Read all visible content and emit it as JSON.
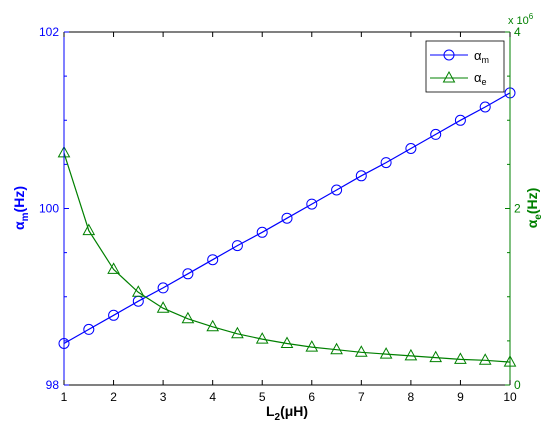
{
  "chart_data": {
    "type": "line",
    "xlabel": "L",
    "xlabel_sub": "2",
    "xlabel_unit": "(μH)",
    "ylabel_left": "α",
    "ylabel_left_sub": "m",
    "ylabel_left_unit": "(Hz)",
    "ylabel_right": "α",
    "ylabel_right_sub": "e",
    "ylabel_right_unit": "(Hz)",
    "right_axis_multiplier": "x 10",
    "right_axis_exponent": "6",
    "xlim": [
      1,
      10
    ],
    "ylim_left": [
      98,
      102
    ],
    "ylim_right": [
      0,
      4
    ],
    "x_ticks": [
      "1",
      "2",
      "3",
      "4",
      "5",
      "6",
      "7",
      "8",
      "9",
      "10"
    ],
    "y_left_ticks": [
      "98",
      "100",
      "102"
    ],
    "y_right_ticks": [
      "0",
      "2",
      "4"
    ],
    "grid": false,
    "legend_position": "top-right",
    "x": [
      1,
      1.5,
      2,
      2.5,
      3,
      3.5,
      4,
      4.5,
      5,
      5.5,
      6,
      6.5,
      7,
      7.5,
      8,
      8.5,
      9,
      9.5,
      10
    ],
    "series": [
      {
        "name": "α",
        "name_sub": "m",
        "axis": "left",
        "color": "#0000ff",
        "marker": "circle",
        "values": [
          98.47,
          98.63,
          98.79,
          98.95,
          99.1,
          99.26,
          99.42,
          99.58,
          99.73,
          99.89,
          100.05,
          100.21,
          100.37,
          100.52,
          100.68,
          100.84,
          101.0,
          101.15,
          101.31
        ]
      },
      {
        "name": "α",
        "name_sub": "e",
        "axis": "right",
        "color": "#008000",
        "marker": "triangle",
        "values": [
          2.63,
          1.75,
          1.31,
          1.05,
          0.87,
          0.75,
          0.66,
          0.58,
          0.52,
          0.47,
          0.43,
          0.4,
          0.37,
          0.35,
          0.33,
          0.31,
          0.29,
          0.28,
          0.26
        ]
      }
    ]
  }
}
